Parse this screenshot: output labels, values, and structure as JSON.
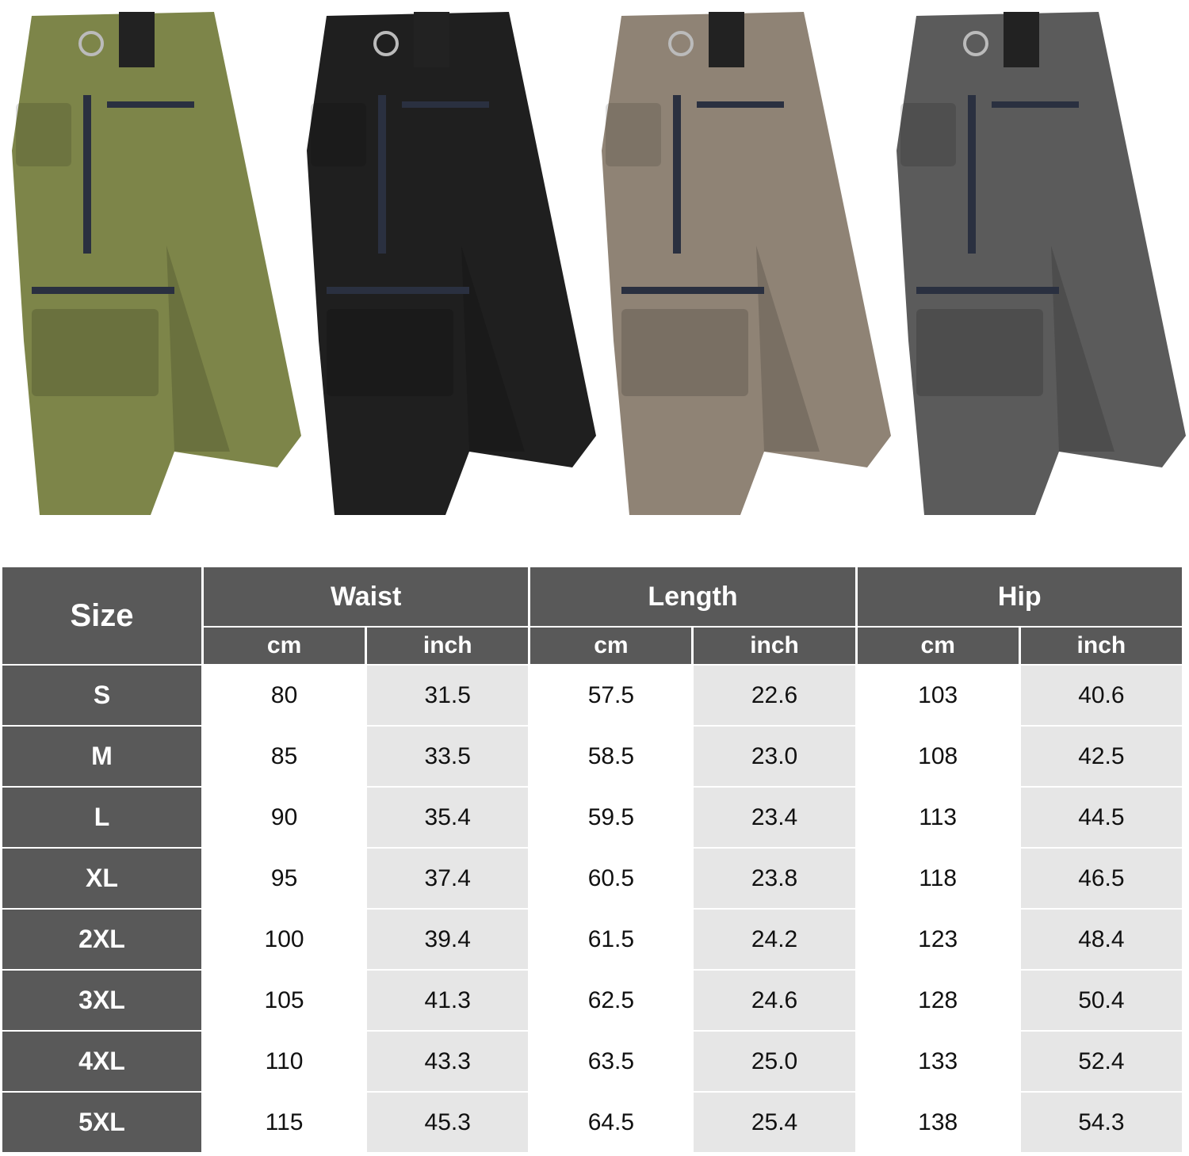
{
  "products": {
    "variants": [
      {
        "color_name": "army-green",
        "color": "#7d8549"
      },
      {
        "color_name": "black",
        "color": "#1f1f1f"
      },
      {
        "color_name": "khaki",
        "color": "#8f8375"
      },
      {
        "color_name": "dark-gray",
        "color": "#5b5b5b"
      }
    ]
  },
  "size_chart": {
    "header_color": "#595959",
    "alt_cell_color": "#e6e6e6",
    "size_label": "Size",
    "groups": [
      "Waist",
      "Length",
      "Hip"
    ],
    "units": [
      "cm",
      "inch",
      "cm",
      "inch",
      "cm",
      "inch"
    ],
    "rows": [
      {
        "size": "S",
        "values": [
          "80",
          "31.5",
          "57.5",
          "22.6",
          "103",
          "40.6"
        ]
      },
      {
        "size": "M",
        "values": [
          "85",
          "33.5",
          "58.5",
          "23.0",
          "108",
          "42.5"
        ]
      },
      {
        "size": "L",
        "values": [
          "90",
          "35.4",
          "59.5",
          "23.4",
          "113",
          "44.5"
        ]
      },
      {
        "size": "XL",
        "values": [
          "95",
          "37.4",
          "60.5",
          "23.8",
          "118",
          "46.5"
        ]
      },
      {
        "size": "2XL",
        "values": [
          "100",
          "39.4",
          "61.5",
          "24.2",
          "123",
          "48.4"
        ]
      },
      {
        "size": "3XL",
        "values": [
          "105",
          "41.3",
          "62.5",
          "24.6",
          "128",
          "50.4"
        ]
      },
      {
        "size": "4XL",
        "values": [
          "110",
          "43.3",
          "63.5",
          "25.0",
          "133",
          "52.4"
        ]
      },
      {
        "size": "5XL",
        "values": [
          "115",
          "45.3",
          "64.5",
          "25.4",
          "138",
          "54.3"
        ]
      }
    ]
  }
}
